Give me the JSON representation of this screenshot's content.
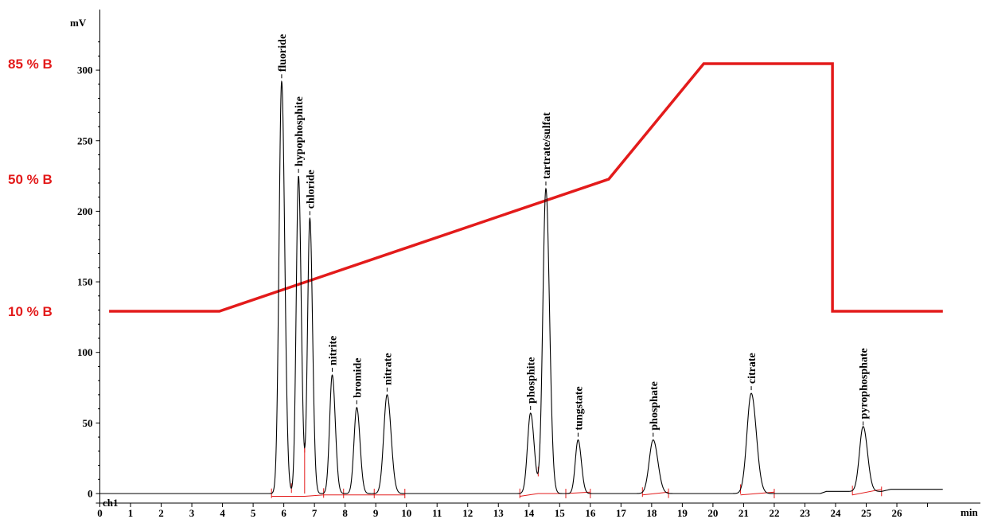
{
  "chart_data": {
    "type": "line",
    "xlabel": "min",
    "ylabel": "mV",
    "channel_label": "ch1",
    "xlim": [
      0,
      27.5
    ],
    "ylim": [
      -5,
      330
    ],
    "x_ticks": [
      0,
      1,
      2,
      3,
      4,
      5,
      6,
      7,
      8,
      9,
      10,
      11,
      12,
      13,
      14,
      15,
      16,
      17,
      18,
      19,
      20,
      21,
      22,
      23,
      24,
      25,
      26
    ],
    "y_ticks": [
      0,
      50,
      100,
      150,
      200,
      250,
      300
    ],
    "colors": {
      "trace": "#000000",
      "gradient": "#e31b1b",
      "integration": "#e31b1b"
    },
    "series": [
      {
        "name": "ch1",
        "baseline_drift": [
          [
            0,
            0
          ],
          [
            23.5,
            0
          ],
          [
            23.7,
            1.5
          ],
          [
            25.5,
            1.5
          ],
          [
            25.8,
            3
          ],
          [
            27.5,
            3
          ]
        ],
        "peaks": [
          {
            "name": "fluoride",
            "rt": 5.93,
            "height": 292,
            "sigma": 0.085
          },
          {
            "name": "hypophosphite",
            "rt": 6.48,
            "height": 225,
            "sigma": 0.075
          },
          {
            "name": "chloride",
            "rt": 6.85,
            "height": 195,
            "sigma": 0.075
          },
          {
            "name": "nitrite",
            "rt": 7.58,
            "height": 84,
            "sigma": 0.085
          },
          {
            "name": "bromide",
            "rt": 8.38,
            "height": 61,
            "sigma": 0.09
          },
          {
            "name": "nitrate",
            "rt": 9.37,
            "height": 70,
            "sigma": 0.11
          },
          {
            "name": "phosphite",
            "rt": 14.05,
            "height": 57,
            "sigma": 0.1
          },
          {
            "name": "tartrate/sulfat",
            "rt": 14.55,
            "height": 216,
            "sigma": 0.1
          },
          {
            "name": "tungstate",
            "rt": 15.6,
            "height": 38,
            "sigma": 0.09
          },
          {
            "name": "phosphate",
            "rt": 18.05,
            "height": 38,
            "sigma": 0.13
          },
          {
            "name": "citrate",
            "rt": 21.25,
            "height": 71,
            "sigma": 0.14
          },
          {
            "name": "pyrophosphate",
            "rt": 24.9,
            "height": 46,
            "sigma": 0.12
          }
        ]
      }
    ],
    "integration_markers": [
      5.6,
      6.25,
      6.68,
      7.3,
      7.95,
      8.95,
      9.95,
      13.7,
      14.3,
      15.2,
      16,
      17.7,
      18.55,
      20.9,
      22,
      24.55,
      25.5
    ],
    "gradient_program": {
      "labels": [
        "85 % B",
        "50 % B",
        "10 % B"
      ],
      "label_levels": [
        85,
        50,
        10
      ],
      "points": [
        [
          0.3,
          10
        ],
        [
          3.9,
          10
        ],
        [
          16.6,
          50
        ],
        [
          19.7,
          85
        ],
        [
          23.9,
          85
        ],
        [
          23.9,
          10
        ],
        [
          27.5,
          10
        ]
      ]
    }
  }
}
